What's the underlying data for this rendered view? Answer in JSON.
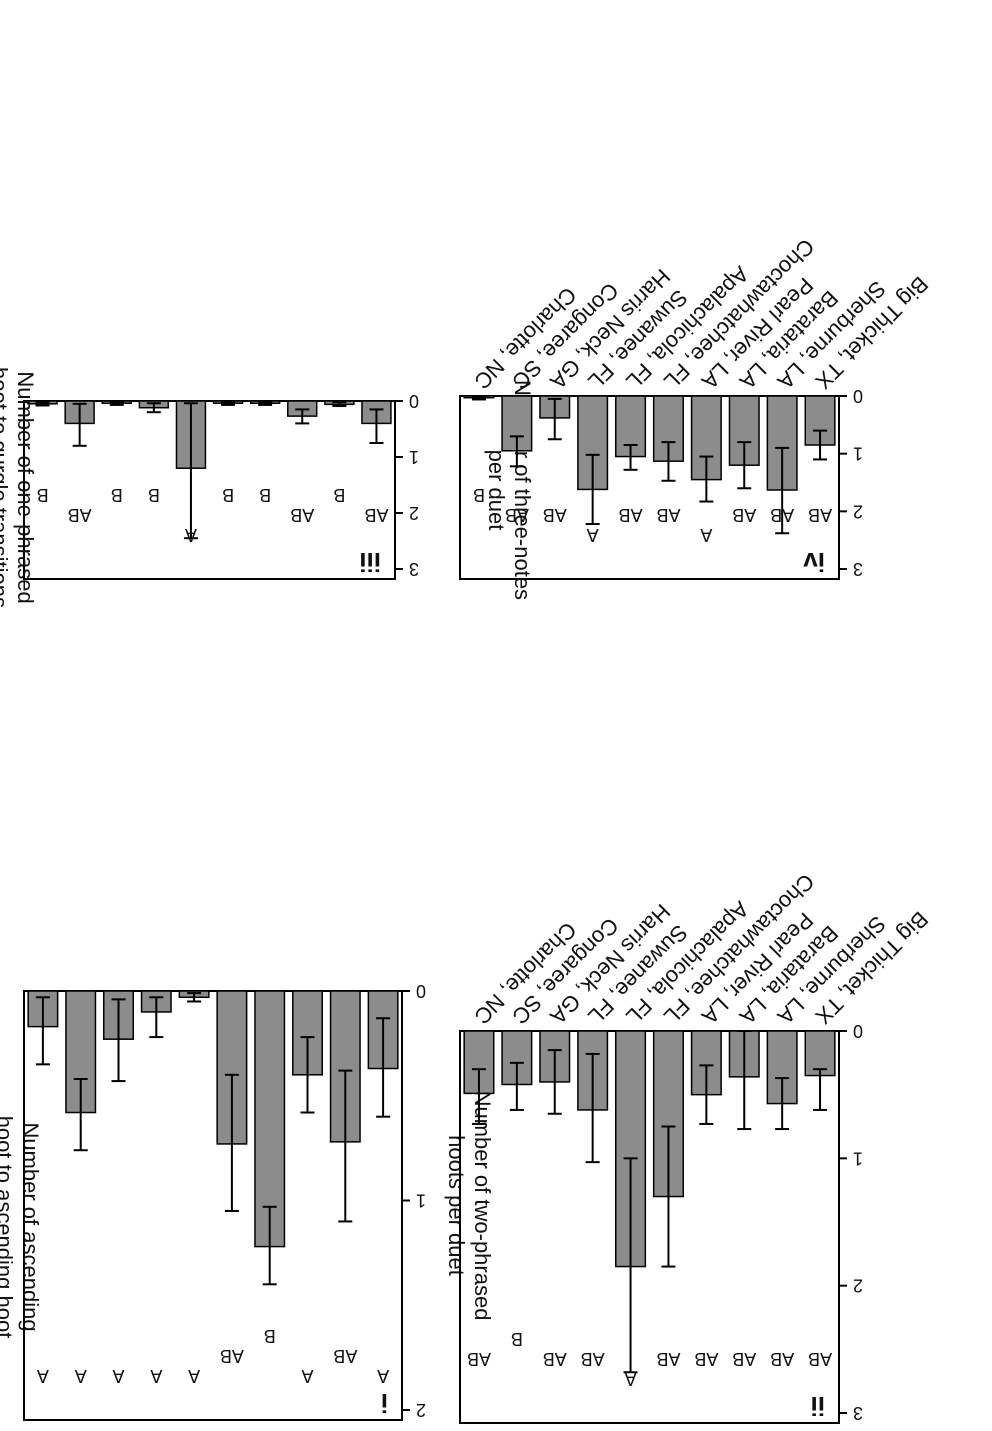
{
  "sites": [
    "Big Thicket, TX",
    "Sherburne, LA",
    "Barataria, LA",
    "Pearl River, LA",
    "Choctawhatchee, FL",
    "Apalachicola, FL",
    "Suwanee, FL",
    "Harris Neck, GA",
    "Congaree, SC",
    "Charlotte, NC"
  ],
  "chart_data": [
    {
      "type": "bar",
      "panel_label": "i",
      "ylabel": "Number of two-phrased hoots per duet",
      "ylim": [
        0,
        2
      ],
      "yticks": [
        "0",
        "1",
        "2"
      ],
      "values": [
        0.37,
        0.72,
        0.4,
        1.22,
        0.73,
        0.03,
        0.1,
        0.23,
        0.58,
        0.17
      ],
      "err_low": [
        0.13,
        0.38,
        0.22,
        1.03,
        0.4,
        0.01,
        0.03,
        0.04,
        0.42,
        0.03
      ],
      "err_high": [
        0.6,
        1.1,
        0.58,
        1.4,
        1.05,
        0.05,
        0.22,
        0.43,
        0.76,
        0.35
      ],
      "letters": [
        "A",
        "AB",
        "A",
        "B",
        "AB",
        "A",
        "A",
        "A",
        "A",
        "A"
      ]
    },
    {
      "type": "bar",
      "panel_label": "iii",
      "ylabel": "Number of three-notes per duet",
      "ylim": [
        0,
        3
      ],
      "yticks": [
        "0",
        "1",
        "2",
        "3"
      ],
      "values": [
        0.4,
        0.06,
        0.27,
        0.04,
        0.04,
        1.2,
        0.12,
        0.04,
        0.4,
        0.05
      ],
      "err_low": [
        0.15,
        0.02,
        0.15,
        0.02,
        0.02,
        0.04,
        0.04,
        0.01,
        0.05,
        0.02
      ],
      "err_high": [
        0.75,
        0.09,
        0.4,
        0.07,
        0.07,
        2.45,
        0.2,
        0.07,
        0.8,
        0.08
      ],
      "letters": [
        "AB",
        "B",
        "AB",
        "B",
        "B",
        "A",
        "B",
        "B",
        "AB",
        "B"
      ]
    },
    {
      "type": "bar",
      "panel_label": "ii",
      "ylabel": "Number of ascending hoot to ascending hoot transitions per duet",
      "ylim": [
        0,
        3
      ],
      "yticks": [
        "0",
        "1",
        "2",
        "3"
      ],
      "values": [
        0.35,
        0.57,
        0.36,
        0.5,
        1.3,
        1.85,
        0.62,
        0.4,
        0.42,
        0.49
      ],
      "err_low": [
        0.3,
        0.37,
        0.0,
        0.27,
        0.75,
        1.0,
        0.18,
        0.15,
        0.25,
        0.3
      ],
      "err_high": [
        0.62,
        0.77,
        0.77,
        0.73,
        1.85,
        2.68,
        1.03,
        0.65,
        0.62,
        0.73
      ],
      "letters": [
        "AB",
        "AB",
        "AB",
        "AB",
        "AB",
        "A",
        "AB",
        "AB",
        "B",
        "AB"
      ]
    },
    {
      "type": "bar",
      "panel_label": "iv",
      "ylabel": "Number of one-phrased hoot to gurgle transitions per duet",
      "ylim": [
        0,
        3
      ],
      "yticks": [
        "0",
        "1",
        "2",
        "3"
      ],
      "values": [
        0.85,
        1.63,
        1.2,
        1.45,
        1.13,
        1.05,
        1.62,
        0.38,
        0.95,
        0.03
      ],
      "err_low": [
        0.6,
        0.9,
        0.8,
        1.05,
        0.8,
        0.85,
        1.02,
        0.05,
        0.7,
        0.01
      ],
      "err_high": [
        1.1,
        2.38,
        1.6,
        1.83,
        1.47,
        1.28,
        2.22,
        0.75,
        1.22,
        0.06
      ],
      "letters": [
        "AB",
        "AB",
        "AB",
        "A",
        "AB",
        "AB",
        "A",
        "AB",
        "AB",
        "B"
      ]
    }
  ],
  "colors": {
    "bar_fill": "#8c8c8c",
    "bar_stroke": "#000000",
    "axis": "#000000",
    "text": "#111111"
  }
}
